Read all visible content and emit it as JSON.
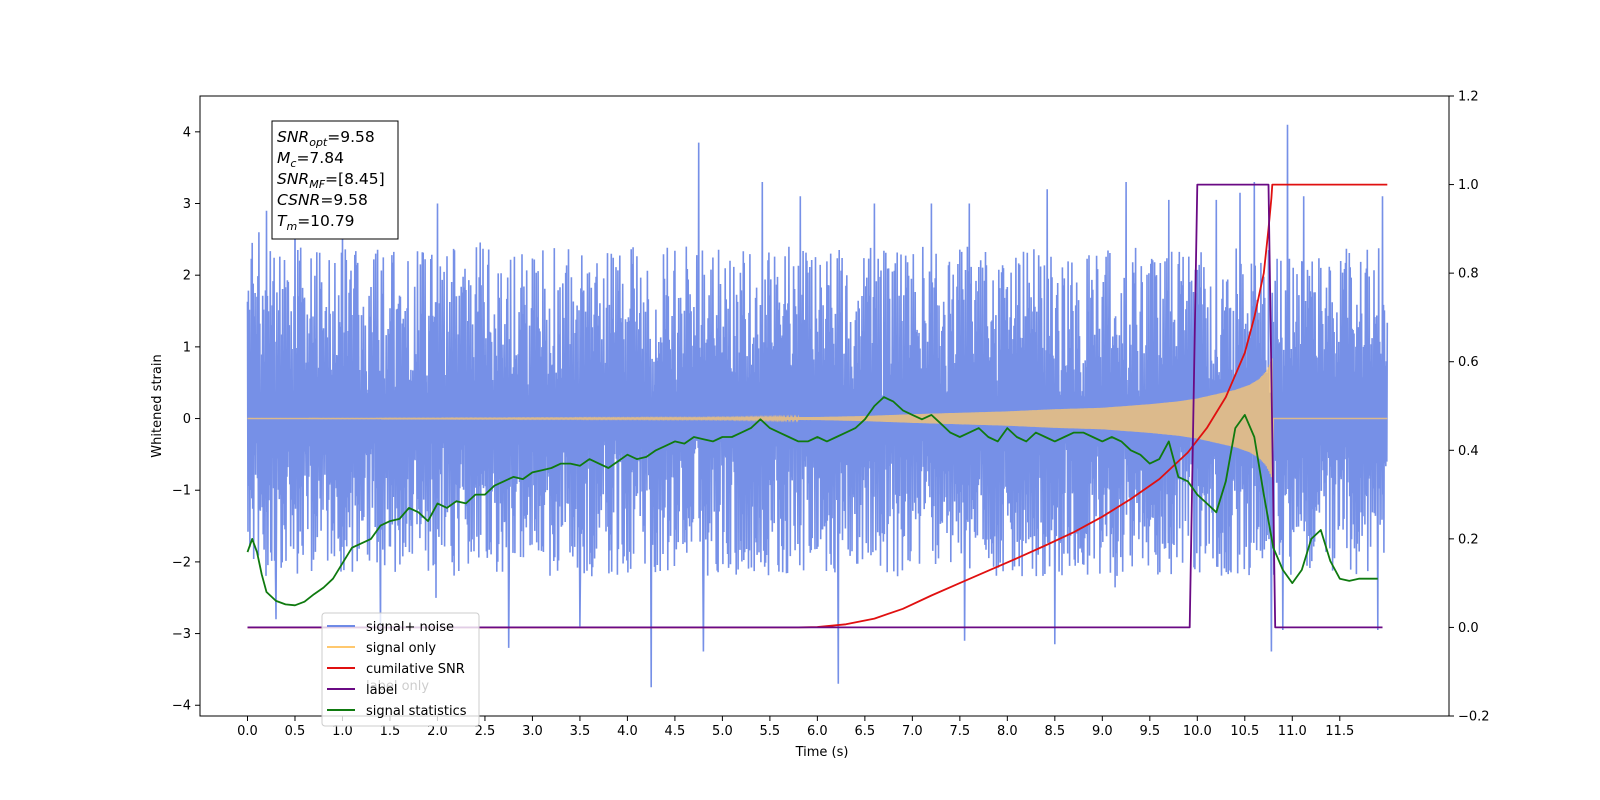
{
  "chart_data": {
    "type": "line",
    "xlabel": "Time (s)",
    "ylabel_left": "Whitened strain",
    "ylabel_right": "",
    "xlim": [
      -0.5,
      12.65
    ],
    "ylim_left": [
      -4.15,
      4.5
    ],
    "ylim_right": [
      -0.2,
      1.2
    ],
    "grid": false,
    "x_ticks": [
      "0.0",
      "0.5",
      "1.0",
      "1.5",
      "2.0",
      "2.5",
      "3.0",
      "3.5",
      "4.0",
      "4.5",
      "5.0",
      "5.5",
      "6.0",
      "6.5",
      "7.0",
      "7.5",
      "8.0",
      "8.5",
      "9.0",
      "9.5",
      "10.0",
      "10.5",
      "11.0",
      "11.5"
    ],
    "y_left_ticks": [
      "4",
      "3",
      "2",
      "1",
      "0",
      "−1",
      "−2",
      "−3",
      "−4"
    ],
    "y_right_ticks": [
      "1.2",
      "1.0",
      "0.8",
      "0.6",
      "0.4",
      "0.2",
      "0.0",
      "−0.2"
    ],
    "annotation": {
      "lines": [
        {
          "base": "SNR",
          "sub": "opt",
          "rest": "=9.58"
        },
        {
          "base": "M",
          "sub": "c",
          "rest": "=7.84"
        },
        {
          "base": "SNR",
          "sub": "MF",
          "rest": "=[8.45]"
        },
        {
          "base": "CSNR",
          "sub": "",
          "rest": "=9.58"
        },
        {
          "base": "T",
          "sub": "m",
          "rest": "=10.79"
        }
      ]
    },
    "legend": {
      "position": "lower-left",
      "entries": [
        {
          "name": "signal+ noise",
          "color": "#6f8ae6"
        },
        {
          "name": "signal only",
          "color": "#ffc86e"
        },
        {
          "name": "cumilative SNR",
          "color": "#e01010"
        },
        {
          "name": "label",
          "color": "#6a0a84"
        },
        {
          "name": "signal statistics",
          "color": "#0f7a0f"
        }
      ],
      "occluded_text": "label only"
    },
    "series": [
      {
        "name": "signal+ noise",
        "axis": "left",
        "color": "#6f8ae6",
        "x_range": [
          0.0,
          12.0
        ],
        "envelope_typical": [
          -2.2,
          2.4
        ],
        "peaks": [
          {
            "x": 0.05,
            "y": 2.45
          },
          {
            "x": 0.12,
            "y": 2.6
          },
          {
            "x": 0.2,
            "y": 2.9
          },
          {
            "x": 0.5,
            "y": 3.0
          },
          {
            "x": 1.0,
            "y": 2.6
          },
          {
            "x": 2.0,
            "y": 3.0
          },
          {
            "x": 4.75,
            "y": 3.85
          },
          {
            "x": 5.42,
            "y": 3.3
          },
          {
            "x": 5.82,
            "y": 3.1
          },
          {
            "x": 6.6,
            "y": 3.0
          },
          {
            "x": 7.2,
            "y": 3.0
          },
          {
            "x": 7.6,
            "y": 3.0
          },
          {
            "x": 8.42,
            "y": 3.2
          },
          {
            "x": 9.25,
            "y": 3.3
          },
          {
            "x": 9.7,
            "y": 3.05
          },
          {
            "x": 10.2,
            "y": 3.05
          },
          {
            "x": 10.45,
            "y": 3.15
          },
          {
            "x": 10.6,
            "y": 3.3
          },
          {
            "x": 10.95,
            "y": 4.1
          },
          {
            "x": 11.12,
            "y": 3.1
          },
          {
            "x": 11.95,
            "y": 3.1
          }
        ],
        "troughs": [
          {
            "x": 0.3,
            "y": -2.8
          },
          {
            "x": 1.4,
            "y": -3.0
          },
          {
            "x": 2.75,
            "y": -3.2
          },
          {
            "x": 3.5,
            "y": -2.9
          },
          {
            "x": 4.25,
            "y": -3.75
          },
          {
            "x": 4.8,
            "y": -3.25
          },
          {
            "x": 6.22,
            "y": -3.7
          },
          {
            "x": 7.55,
            "y": -3.1
          },
          {
            "x": 8.5,
            "y": -3.15
          },
          {
            "x": 10.78,
            "y": -3.25
          },
          {
            "x": 10.9,
            "y": -2.95
          },
          {
            "x": 11.9,
            "y": -2.95
          }
        ]
      },
      {
        "name": "signal only",
        "axis": "left",
        "color": "#ffc86e",
        "x": [
          0.0,
          5.0,
          6.0,
          6.5,
          7.0,
          7.5,
          8.0,
          8.5,
          9.0,
          9.5,
          9.8,
          10.0,
          10.2,
          10.4,
          10.55,
          10.65,
          10.72,
          10.76,
          10.79,
          10.8,
          12.0
        ],
        "amplitude": [
          0.0,
          0.01,
          0.02,
          0.035,
          0.06,
          0.08,
          0.1,
          0.13,
          0.15,
          0.2,
          0.24,
          0.28,
          0.34,
          0.4,
          0.47,
          0.55,
          0.65,
          0.75,
          0.85,
          0.0,
          0.0
        ]
      },
      {
        "name": "cumilative SNR",
        "axis": "right",
        "color": "#e01010",
        "x": [
          0.0,
          5.8,
          6.0,
          6.3,
          6.6,
          6.9,
          7.2,
          7.5,
          7.8,
          8.1,
          8.4,
          8.7,
          9.0,
          9.3,
          9.6,
          9.9,
          10.1,
          10.3,
          10.5,
          10.6,
          10.7,
          10.75,
          10.78,
          10.79,
          12.0
        ],
        "y": [
          0.0,
          0.0,
          0.001,
          0.007,
          0.02,
          0.042,
          0.072,
          0.1,
          0.128,
          0.156,
          0.185,
          0.215,
          0.25,
          0.29,
          0.335,
          0.395,
          0.45,
          0.52,
          0.62,
          0.7,
          0.8,
          0.9,
          0.97,
          1.0,
          1.0
        ]
      },
      {
        "name": "label",
        "axis": "right",
        "color": "#6a0a84",
        "x": [
          0.0,
          9.92,
          10.0,
          10.75,
          10.82,
          11.95
        ],
        "y": [
          0.0,
          0.0,
          1.0,
          1.0,
          0.0,
          0.0
        ]
      },
      {
        "name": "signal statistics",
        "axis": "right",
        "color": "#0f7a0f",
        "x": [
          0.0,
          0.05,
          0.1,
          0.15,
          0.2,
          0.3,
          0.4,
          0.5,
          0.6,
          0.7,
          0.8,
          0.9,
          1.0,
          1.1,
          1.2,
          1.3,
          1.4,
          1.5,
          1.6,
          1.7,
          1.8,
          1.9,
          2.0,
          2.1,
          2.2,
          2.3,
          2.4,
          2.5,
          2.6,
          2.7,
          2.8,
          2.9,
          3.0,
          3.1,
          3.2,
          3.3,
          3.4,
          3.5,
          3.6,
          3.7,
          3.8,
          3.9,
          4.0,
          4.1,
          4.2,
          4.3,
          4.4,
          4.5,
          4.6,
          4.7,
          4.8,
          4.9,
          5.0,
          5.1,
          5.2,
          5.3,
          5.4,
          5.5,
          5.6,
          5.7,
          5.8,
          5.9,
          6.0,
          6.1,
          6.2,
          6.3,
          6.4,
          6.5,
          6.6,
          6.7,
          6.8,
          6.9,
          7.0,
          7.1,
          7.2,
          7.3,
          7.4,
          7.5,
          7.6,
          7.7,
          7.8,
          7.9,
          8.0,
          8.1,
          8.2,
          8.3,
          8.4,
          8.5,
          8.6,
          8.7,
          8.8,
          8.9,
          9.0,
          9.1,
          9.2,
          9.3,
          9.4,
          9.5,
          9.6,
          9.7,
          9.8,
          9.9,
          10.0,
          10.1,
          10.2,
          10.3,
          10.4,
          10.5,
          10.6,
          10.7,
          10.8,
          10.9,
          11.0,
          11.1,
          11.2,
          11.3,
          11.4,
          11.5,
          11.6,
          11.7,
          11.8,
          11.9
        ],
        "y": [
          0.17,
          0.2,
          0.17,
          0.12,
          0.08,
          0.06,
          0.052,
          0.05,
          0.058,
          0.075,
          0.09,
          0.11,
          0.145,
          0.18,
          0.19,
          0.2,
          0.23,
          0.24,
          0.245,
          0.27,
          0.26,
          0.24,
          0.28,
          0.27,
          0.285,
          0.28,
          0.3,
          0.3,
          0.32,
          0.33,
          0.34,
          0.335,
          0.35,
          0.355,
          0.36,
          0.37,
          0.37,
          0.365,
          0.38,
          0.37,
          0.36,
          0.375,
          0.39,
          0.38,
          0.385,
          0.4,
          0.41,
          0.42,
          0.415,
          0.43,
          0.425,
          0.42,
          0.43,
          0.43,
          0.44,
          0.45,
          0.47,
          0.45,
          0.44,
          0.43,
          0.42,
          0.42,
          0.43,
          0.42,
          0.43,
          0.44,
          0.45,
          0.47,
          0.5,
          0.52,
          0.51,
          0.49,
          0.48,
          0.47,
          0.48,
          0.46,
          0.44,
          0.43,
          0.44,
          0.45,
          0.43,
          0.42,
          0.45,
          0.43,
          0.42,
          0.44,
          0.43,
          0.42,
          0.43,
          0.44,
          0.44,
          0.43,
          0.42,
          0.43,
          0.42,
          0.4,
          0.39,
          0.37,
          0.38,
          0.42,
          0.34,
          0.33,
          0.3,
          0.28,
          0.26,
          0.33,
          0.45,
          0.48,
          0.43,
          0.3,
          0.18,
          0.13,
          0.1,
          0.13,
          0.2,
          0.22,
          0.15,
          0.11,
          0.105,
          0.11,
          0.11,
          0.11
        ]
      }
    ]
  }
}
